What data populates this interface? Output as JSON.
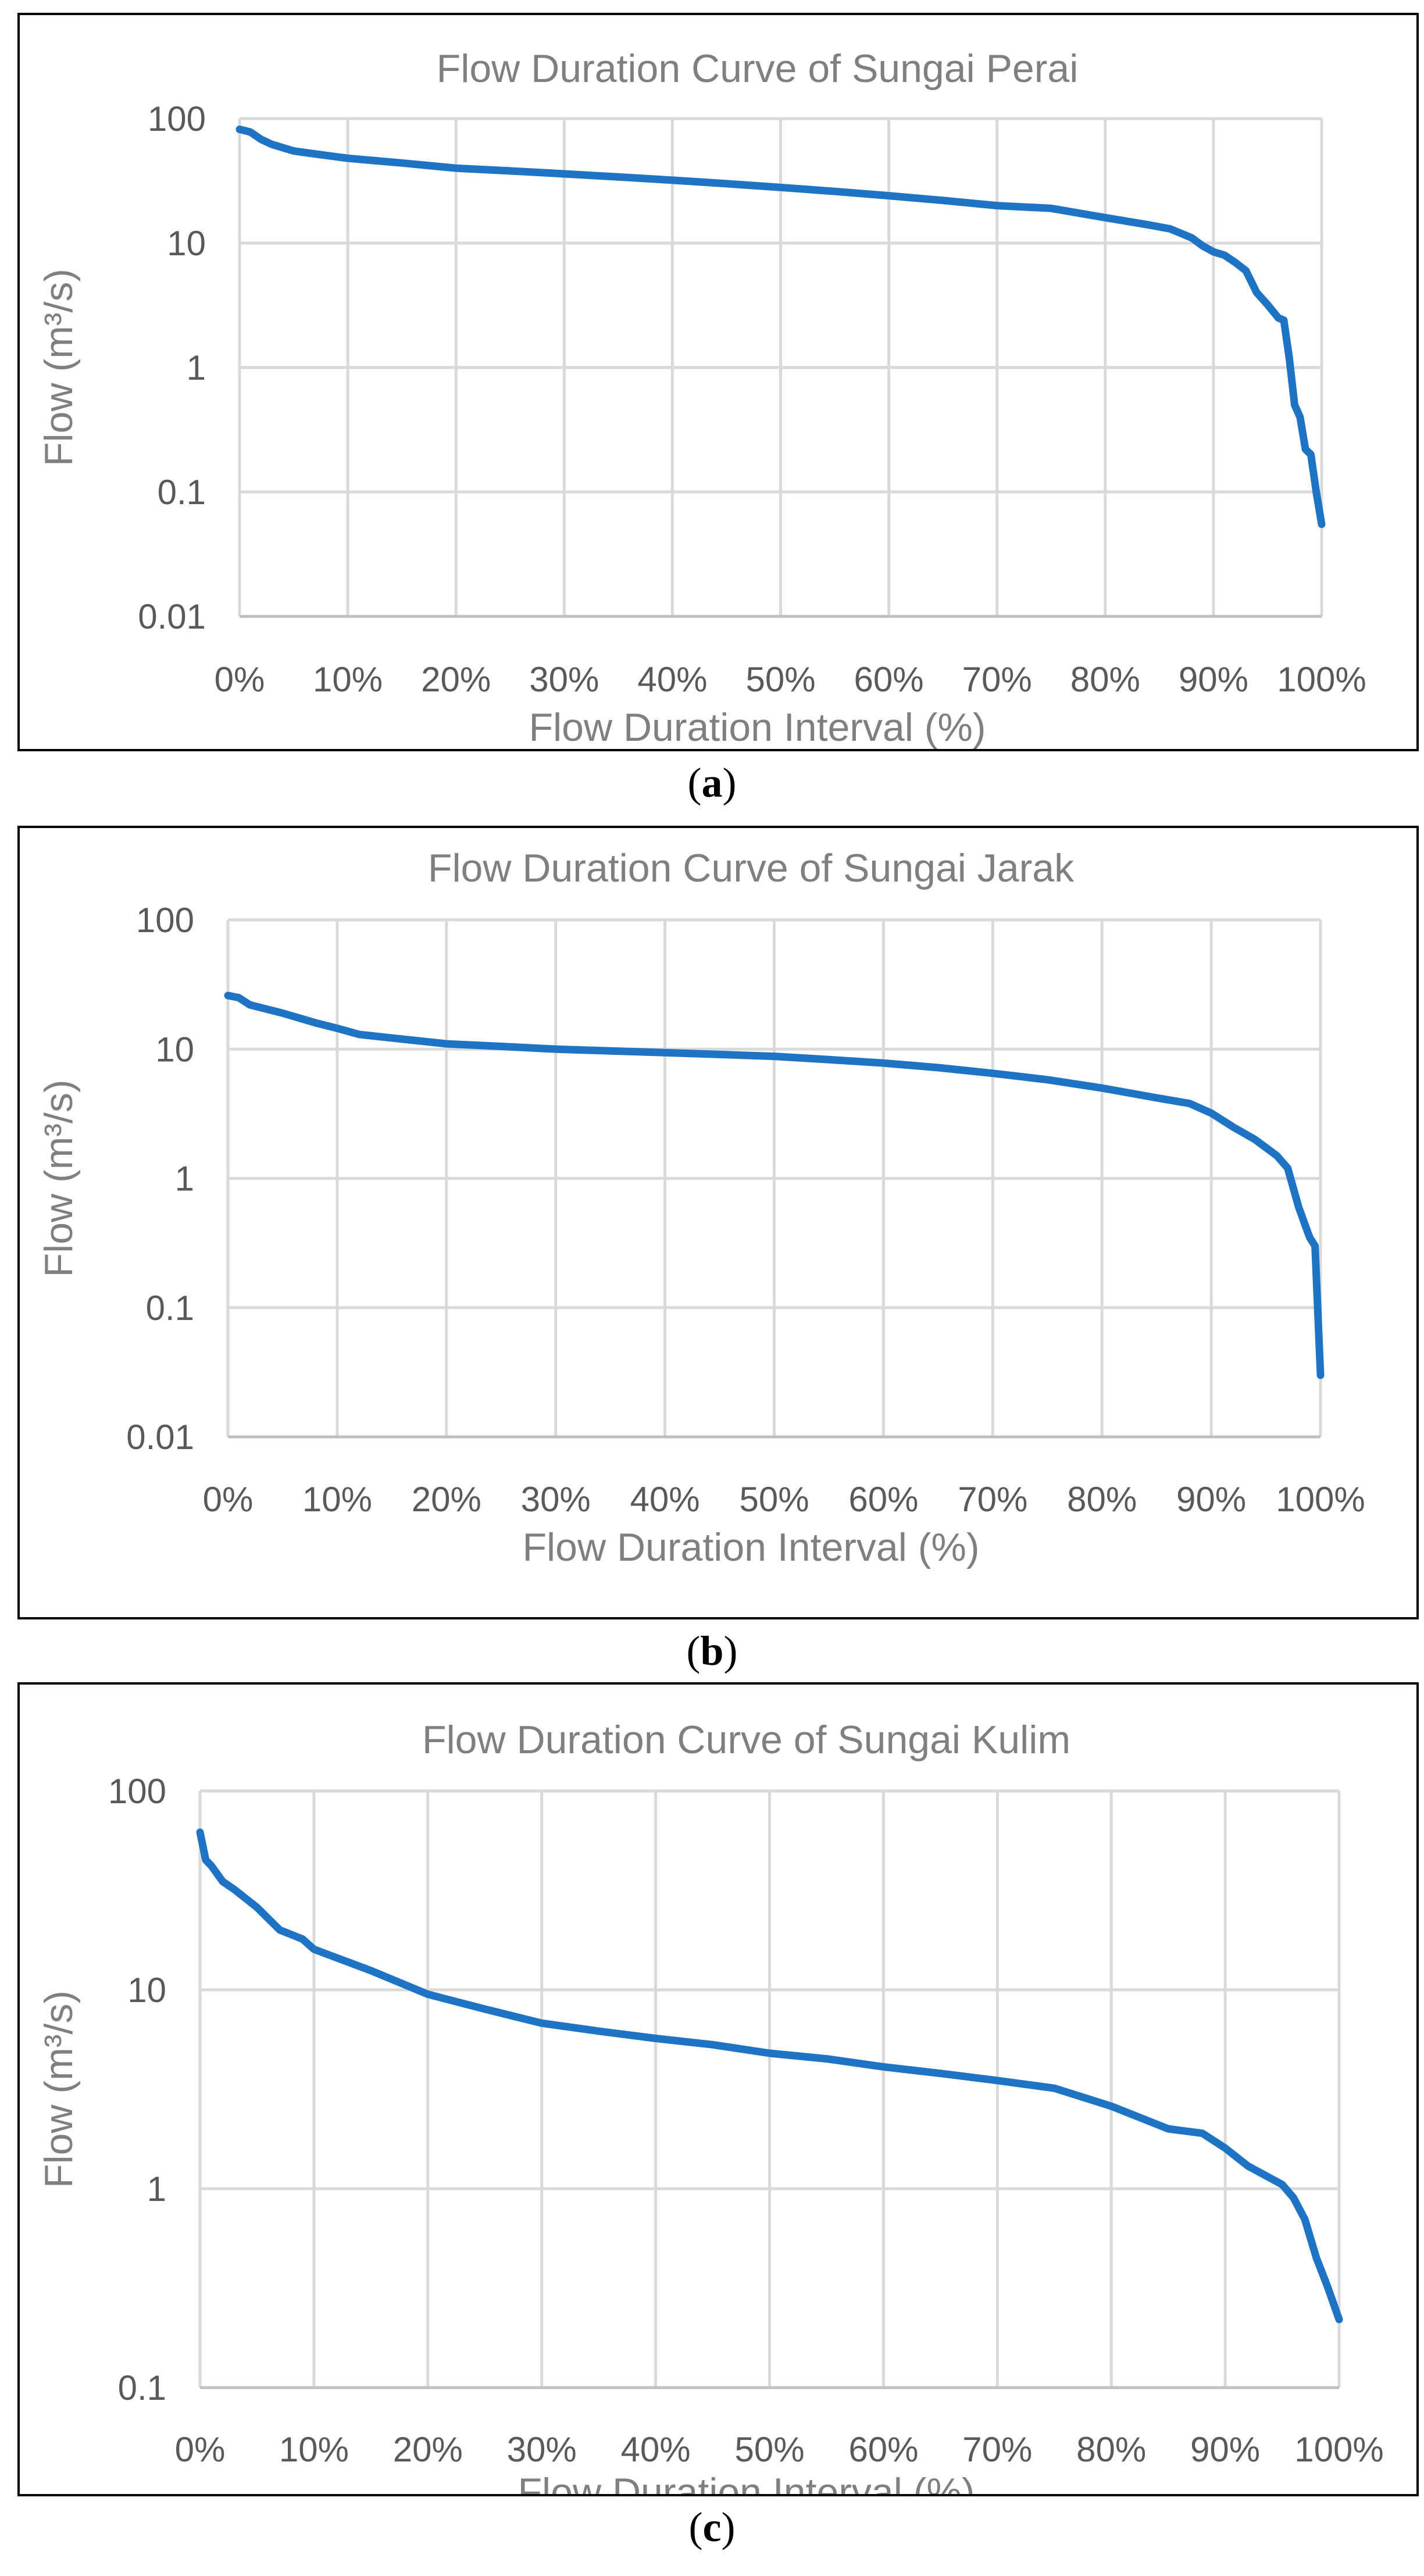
{
  "colors": {
    "series": "#1f73c4",
    "grid": "#d9d9d9",
    "text": "#595959",
    "title": "#7f7f7f"
  },
  "chart_data": [
    {
      "type": "line",
      "title": "Flow Duration Curve of Sungai Perai",
      "xlabel": "Flow Duration Interval (%)",
      "ylabel": "Flow (m³/s)",
      "yscale": "log",
      "xlim": [
        0,
        100
      ],
      "ylim": [
        0.01,
        100
      ],
      "x_ticks": [
        "0%",
        "10%",
        "20%",
        "30%",
        "40%",
        "50%",
        "60%",
        "70%",
        "80%",
        "90%",
        "100%"
      ],
      "y_ticks": [
        "100",
        "10",
        "1",
        "0.1",
        "0.01"
      ],
      "caption": "a",
      "series": [
        {
          "name": "Sungai Perai",
          "x": [
            0,
            1,
            2,
            3,
            5,
            7,
            10,
            15,
            20,
            25,
            30,
            35,
            40,
            45,
            50,
            55,
            60,
            65,
            70,
            75,
            80,
            84,
            86,
            88,
            89,
            90,
            91,
            92,
            93,
            94,
            95,
            96,
            96.5,
            97,
            97.5,
            98,
            98.5,
            99,
            99.5,
            100
          ],
          "values": [
            82,
            78,
            68,
            62,
            55,
            52,
            48,
            44,
            40,
            38,
            36,
            34,
            32,
            30,
            28,
            26,
            24,
            22,
            20,
            19,
            16,
            14,
            13,
            11,
            9.5,
            8.5,
            8,
            7,
            6,
            4,
            3.2,
            2.5,
            2.4,
            1.2,
            0.5,
            0.4,
            0.22,
            0.2,
            0.1,
            0.055
          ]
        }
      ]
    },
    {
      "type": "line",
      "title": "Flow Duration Curve of Sungai Jarak",
      "xlabel": "Flow Duration Interval (%)",
      "ylabel": "Flow (m³/s)",
      "yscale": "log",
      "xlim": [
        0,
        100
      ],
      "ylim": [
        0.01,
        100
      ],
      "x_ticks": [
        "0%",
        "10%",
        "20%",
        "30%",
        "40%",
        "50%",
        "60%",
        "70%",
        "80%",
        "90%",
        "100%"
      ],
      "y_ticks": [
        "100",
        "10",
        "1",
        "0.1",
        "0.01"
      ],
      "caption": "b",
      "series": [
        {
          "name": "Sungai Jarak",
          "x": [
            0,
            1,
            2,
            5,
            8,
            10,
            12,
            15,
            20,
            25,
            30,
            35,
            40,
            45,
            50,
            55,
            60,
            65,
            70,
            75,
            80,
            85,
            88,
            90,
            92,
            94,
            96,
            97,
            98,
            99,
            99.5,
            100
          ],
          "values": [
            26,
            25,
            22,
            19,
            16,
            14.5,
            13,
            12.2,
            11,
            10.5,
            10,
            9.7,
            9.4,
            9.1,
            8.8,
            8.3,
            7.8,
            7.2,
            6.5,
            5.8,
            5,
            4.2,
            3.8,
            3.2,
            2.5,
            2,
            1.5,
            1.2,
            0.6,
            0.35,
            0.3,
            0.03
          ]
        }
      ]
    },
    {
      "type": "line",
      "title": "Flow Duration Curve of Sungai Kulim",
      "xlabel": "Flow Duration Interval (%)",
      "ylabel": "Flow (m³/s)",
      "yscale": "log",
      "xlim": [
        0,
        100
      ],
      "ylim": [
        0.1,
        100
      ],
      "x_ticks": [
        "0%",
        "10%",
        "20%",
        "30%",
        "40%",
        "50%",
        "60%",
        "70%",
        "80%",
        "90%",
        "100%"
      ],
      "y_ticks": [
        "100",
        "10",
        "1",
        "0.1"
      ],
      "caption": "c",
      "series": [
        {
          "name": "Sungai Kulim",
          "x": [
            0,
            0.5,
            1,
            2,
            3,
            5,
            7,
            9,
            10,
            15,
            20,
            25,
            30,
            35,
            40,
            45,
            50,
            55,
            60,
            65,
            70,
            75,
            80,
            85,
            88,
            90,
            92,
            95,
            96,
            97,
            98,
            99,
            100
          ],
          "values": [
            62,
            45,
            42,
            35,
            32,
            26,
            20,
            18,
            16,
            12.5,
            9.5,
            8.0,
            6.8,
            6.2,
            5.7,
            5.3,
            4.8,
            4.5,
            4.1,
            3.8,
            3.5,
            3.2,
            2.6,
            2.0,
            1.9,
            1.6,
            1.3,
            1.05,
            0.9,
            0.7,
            0.45,
            0.32,
            0.22
          ]
        }
      ]
    }
  ]
}
